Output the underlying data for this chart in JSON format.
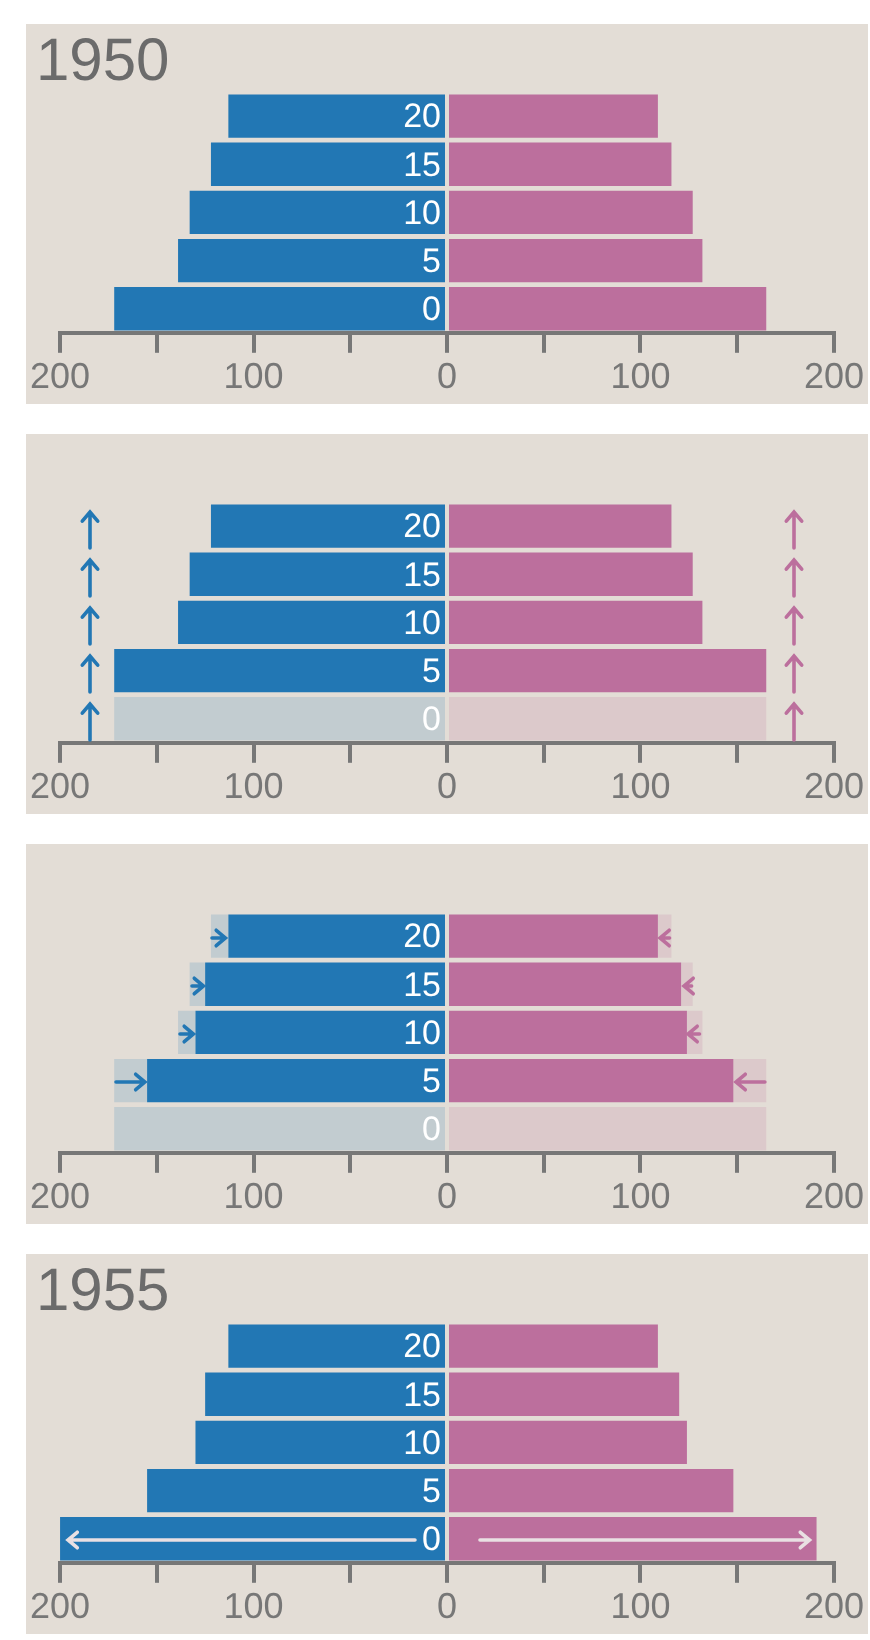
{
  "chart_data": [
    {
      "type": "bar",
      "orientation": "horizontal",
      "stacked": true,
      "title": "1950",
      "categories": [
        "20",
        "15",
        "10",
        "5",
        "0"
      ],
      "grid": false,
      "xlim": [
        -200,
        200
      ],
      "xticks": [
        {
          "value": -200,
          "label": "200"
        },
        {
          "value": -150,
          "label": null
        },
        {
          "value": -100,
          "label": "100"
        },
        {
          "value": -50,
          "label": null
        },
        0,
        {
          "value": 50,
          "label": null
        },
        100,
        {
          "value": 150,
          "label": null
        },
        200
      ],
      "series": [
        {
          "color": "#2277b4",
          "values": [
            -113,
            -122,
            -133,
            -139,
            -172
          ]
        },
        {
          "color": "#bc6f9d",
          "values": [
            109,
            116,
            127,
            132,
            165
          ]
        }
      ]
    },
    {
      "type": "bar",
      "orientation": "horizontal",
      "stacked": true,
      "categories": [
        "20",
        "15",
        "10",
        "5",
        "0"
      ],
      "grid": false,
      "xlim": [
        -200,
        200
      ],
      "xticks": [
        {
          "value": -200,
          "label": "200"
        },
        {
          "value": -150,
          "label": null
        },
        {
          "value": -100,
          "label": "100"
        },
        {
          "value": -50,
          "label": null
        },
        0,
        {
          "value": 50,
          "label": null
        },
        100,
        {
          "value": 150,
          "label": null
        },
        200
      ],
      "series": [
        {
          "color": "#2277b4",
          "values": [
            -122,
            -133,
            -139,
            -172,
            null
          ]
        },
        {
          "color": "#bc6f9d",
          "values": [
            116,
            127,
            132,
            165,
            null
          ]
        },
        {
          "color": "#c2ccd0",
          "values": [
            null,
            null,
            null,
            null,
            -172
          ]
        },
        {
          "color": "#dcc9cb",
          "values": [
            null,
            null,
            null,
            null,
            165
          ]
        }
      ]
    },
    {
      "type": "bar",
      "orientation": "horizontal",
      "stacked": true,
      "categories": [
        "20",
        "15",
        "10",
        "5",
        "0"
      ],
      "grid": false,
      "xlim": [
        -200,
        200
      ],
      "xticks": [
        {
          "value": -200,
          "label": "200"
        },
        {
          "value": -150,
          "label": null
        },
        {
          "value": -100,
          "label": "100"
        },
        {
          "value": -50,
          "label": null
        },
        0,
        {
          "value": 50,
          "label": null
        },
        100,
        {
          "value": 150,
          "label": null
        },
        200
      ],
      "series": [
        {
          "color": "#2277b4",
          "values": [
            -113,
            -125,
            -130,
            -155,
            null
          ]
        },
        {
          "color": "#bc6f9d",
          "values": [
            109,
            121,
            124,
            148,
            null
          ]
        },
        {
          "color": "#c2ccd0",
          "values": [
            -9,
            -8,
            -9,
            -17,
            -172
          ]
        },
        {
          "color": "#dcc9cb",
          "values": [
            7,
            6,
            8,
            17,
            165
          ]
        }
      ]
    },
    {
      "type": "bar",
      "orientation": "horizontal",
      "stacked": true,
      "title": "1955",
      "categories": [
        "20",
        "15",
        "10",
        "5",
        "0"
      ],
      "grid": false,
      "xlim": [
        -200,
        200
      ],
      "xticks": [
        {
          "value": -200,
          "label": "200"
        },
        {
          "value": -150,
          "label": null
        },
        {
          "value": -100,
          "label": "100"
        },
        {
          "value": -50,
          "label": null
        },
        0,
        {
          "value": 50,
          "label": null
        },
        100,
        {
          "value": 150,
          "label": null
        },
        200
      ],
      "series": [
        {
          "color": "#2277b4",
          "values": [
            -113,
            -125,
            -130,
            -155,
            -200
          ]
        },
        {
          "color": "#bc6f9d",
          "values": [
            109,
            120,
            124,
            148,
            191
          ]
        }
      ]
    }
  ]
}
